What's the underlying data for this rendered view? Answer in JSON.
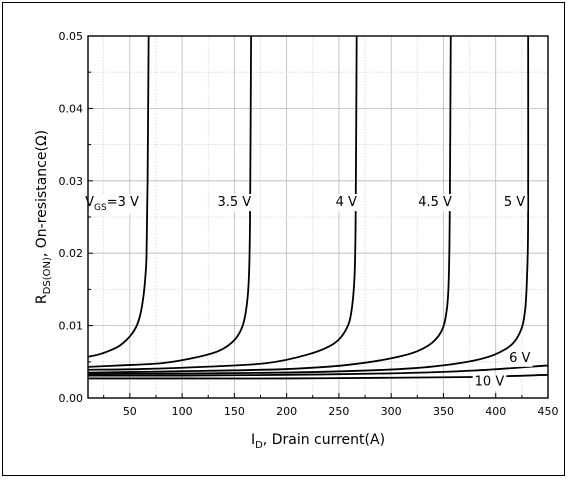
{
  "chart_data": {
    "type": "line",
    "title": "",
    "xlabel": {
      "main": "I",
      "sub": "D",
      "rest": ", Drain current(A)"
    },
    "ylabel": {
      "main": "R",
      "sub": "DS(ON)",
      "rest": ", On-resistance(Ω)"
    },
    "xlim": [
      10,
      450
    ],
    "ylim": [
      0,
      0.05
    ],
    "xticks": [
      50,
      100,
      150,
      200,
      250,
      300,
      350,
      400,
      450
    ],
    "yticks": [
      0.0,
      0.01,
      0.02,
      0.03,
      0.04,
      0.05
    ],
    "ytick_labels": [
      "0.00",
      "0.01",
      "0.02",
      "0.03",
      "0.04",
      "0.05"
    ],
    "grid": true,
    "legend": "none",
    "series": [
      {
        "label": {
          "main": "V",
          "sub": "GS",
          "rest": "=3 V"
        },
        "label_at": [
          33,
          0.0265
        ],
        "points": [
          [
            10,
            0.0057
          ],
          [
            20,
            0.006
          ],
          [
            30,
            0.0065
          ],
          [
            40,
            0.0072
          ],
          [
            50,
            0.0085
          ],
          [
            56,
            0.0098
          ],
          [
            60,
            0.0115
          ],
          [
            63,
            0.014
          ],
          [
            65,
            0.017
          ],
          [
            66,
            0.02
          ],
          [
            67,
            0.03
          ],
          [
            68,
            0.05
          ]
        ]
      },
      {
        "label": {
          "main": "",
          "sub": "",
          "rest": "3.5 V"
        },
        "label_at": [
          150,
          0.0265
        ],
        "points": [
          [
            10,
            0.0043
          ],
          [
            40,
            0.0045
          ],
          [
            80,
            0.0048
          ],
          [
            110,
            0.0055
          ],
          [
            135,
            0.0065
          ],
          [
            150,
            0.008
          ],
          [
            158,
            0.01
          ],
          [
            162,
            0.013
          ],
          [
            164,
            0.017
          ],
          [
            165,
            0.025
          ],
          [
            166,
            0.05
          ]
        ]
      },
      {
        "label": {
          "main": "",
          "sub": "",
          "rest": "4 V"
        },
        "label_at": [
          257,
          0.0265
        ],
        "points": [
          [
            10,
            0.0039
          ],
          [
            60,
            0.004
          ],
          [
            120,
            0.0043
          ],
          [
            180,
            0.0048
          ],
          [
            220,
            0.006
          ],
          [
            245,
            0.0075
          ],
          [
            257,
            0.0095
          ],
          [
            262,
            0.012
          ],
          [
            265,
            0.017
          ],
          [
            266,
            0.025
          ],
          [
            267,
            0.05
          ]
        ]
      },
      {
        "label": {
          "main": "",
          "sub": "",
          "rest": "4.5 V"
        },
        "label_at": [
          342,
          0.0265
        ],
        "points": [
          [
            10,
            0.0035
          ],
          [
            100,
            0.0037
          ],
          [
            200,
            0.004
          ],
          [
            260,
            0.0046
          ],
          [
            310,
            0.0058
          ],
          [
            335,
            0.0072
          ],
          [
            348,
            0.0092
          ],
          [
            353,
            0.012
          ],
          [
            355,
            0.016
          ],
          [
            356,
            0.025
          ],
          [
            357,
            0.05
          ]
        ]
      },
      {
        "label": {
          "main": "",
          "sub": "",
          "rest": "5 V"
        },
        "label_at": [
          418,
          0.0265
        ],
        "points": [
          [
            10,
            0.0033
          ],
          [
            120,
            0.0034
          ],
          [
            230,
            0.0036
          ],
          [
            320,
            0.0041
          ],
          [
            380,
            0.0052
          ],
          [
            410,
            0.0068
          ],
          [
            423,
            0.009
          ],
          [
            428,
            0.012
          ],
          [
            430,
            0.017
          ],
          [
            431,
            0.025
          ],
          [
            431,
            0.05
          ]
        ]
      },
      {
        "label": {
          "main": "",
          "sub": "",
          "rest": "6 V"
        },
        "label_at": [
          423,
          0.005
        ],
        "points": [
          [
            10,
            0.0031
          ],
          [
            100,
            0.0031
          ],
          [
            200,
            0.0032
          ],
          [
            300,
            0.0034
          ],
          [
            380,
            0.0038
          ],
          [
            450,
            0.0045
          ]
        ]
      },
      {
        "label": {
          "main": "",
          "sub": "",
          "rest": "10 V"
        },
        "label_at": [
          394,
          0.0017
        ],
        "points": [
          [
            10,
            0.0027
          ],
          [
            100,
            0.0027
          ],
          [
            200,
            0.0027
          ],
          [
            300,
            0.0028
          ],
          [
            380,
            0.0029
          ],
          [
            450,
            0.0032
          ]
        ]
      }
    ]
  }
}
